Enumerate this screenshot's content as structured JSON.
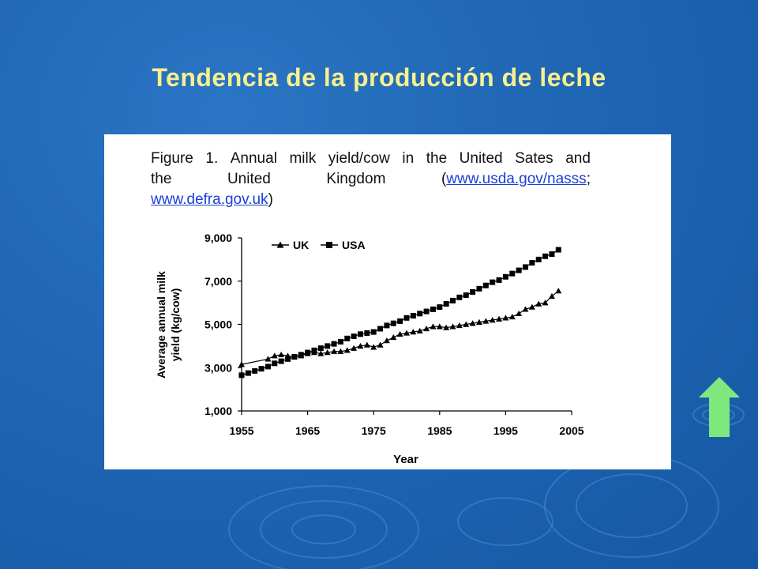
{
  "slide": {
    "title": "Tendencia de la producción de leche"
  },
  "figure": {
    "caption_row1": [
      "Figure",
      "1.",
      "Annual",
      "milk",
      "yield/cow",
      "in",
      "the",
      "United",
      "Sates",
      "and"
    ],
    "caption_row2_words": [
      "the",
      "United",
      "Kingdom"
    ],
    "caption_row2_link_open": "(",
    "caption_row2_link": "www.usda.gov/nasss",
    "caption_row2_link_close": ";",
    "caption_row3_link": "www.defra.gov.uk",
    "caption_row3_close": ")"
  },
  "colors": {
    "title": "#f7f08f",
    "arrow": "#7ee87f",
    "background": "#1f66b3"
  },
  "chart_data": {
    "type": "line",
    "xlabel": "Year",
    "ylabel": "Average annual milk yield (kg/cow)",
    "xlim": [
      1955,
      2005
    ],
    "ylim": [
      1000,
      9000
    ],
    "x_ticks": [
      "1955",
      "1965",
      "1975",
      "1985",
      "1995",
      "2005"
    ],
    "y_ticks": [
      "1,000",
      "3,000",
      "5,000",
      "7,000",
      "9,000"
    ],
    "legend_position": "top-left",
    "series": [
      {
        "name": "UK",
        "marker": "triangle",
        "x": [
          1955,
          1959,
          1960,
          1961,
          1962,
          1963,
          1964,
          1965,
          1966,
          1967,
          1968,
          1969,
          1970,
          1971,
          1972,
          1973,
          1974,
          1975,
          1976,
          1977,
          1978,
          1979,
          1980,
          1981,
          1982,
          1983,
          1984,
          1985,
          1986,
          1987,
          1988,
          1989,
          1990,
          1991,
          1992,
          1993,
          1994,
          1995,
          1996,
          1997,
          1998,
          1999,
          2000,
          2001,
          2002,
          2003
        ],
        "y": [
          3150,
          3400,
          3550,
          3600,
          3550,
          3500,
          3550,
          3650,
          3700,
          3650,
          3700,
          3750,
          3750,
          3800,
          3900,
          4000,
          4050,
          3950,
          4050,
          4250,
          4400,
          4550,
          4600,
          4650,
          4700,
          4800,
          4900,
          4900,
          4850,
          4900,
          4950,
          5000,
          5050,
          5100,
          5150,
          5200,
          5250,
          5300,
          5350,
          5500,
          5700,
          5800,
          5950,
          6000,
          6300,
          6550
        ]
      },
      {
        "name": "USA",
        "marker": "square",
        "x": [
          1955,
          1956,
          1957,
          1958,
          1959,
          1960,
          1961,
          1962,
          1963,
          1964,
          1965,
          1966,
          1967,
          1968,
          1969,
          1970,
          1971,
          1972,
          1973,
          1974,
          1975,
          1976,
          1977,
          1978,
          1979,
          1980,
          1981,
          1982,
          1983,
          1984,
          1985,
          1986,
          1987,
          1988,
          1989,
          1990,
          1991,
          1992,
          1993,
          1994,
          1995,
          1996,
          1997,
          1998,
          1999,
          2000,
          2001,
          2002,
          2003
        ],
        "y": [
          2650,
          2750,
          2850,
          2950,
          3050,
          3200,
          3300,
          3400,
          3500,
          3600,
          3700,
          3800,
          3900,
          4000,
          4100,
          4200,
          4350,
          4450,
          4550,
          4600,
          4650,
          4800,
          4950,
          5050,
          5150,
          5300,
          5400,
          5500,
          5600,
          5700,
          5800,
          5950,
          6100,
          6250,
          6350,
          6500,
          6650,
          6800,
          6950,
          7050,
          7200,
          7350,
          7500,
          7650,
          7850,
          8000,
          8150,
          8250,
          8450
        ]
      }
    ]
  }
}
